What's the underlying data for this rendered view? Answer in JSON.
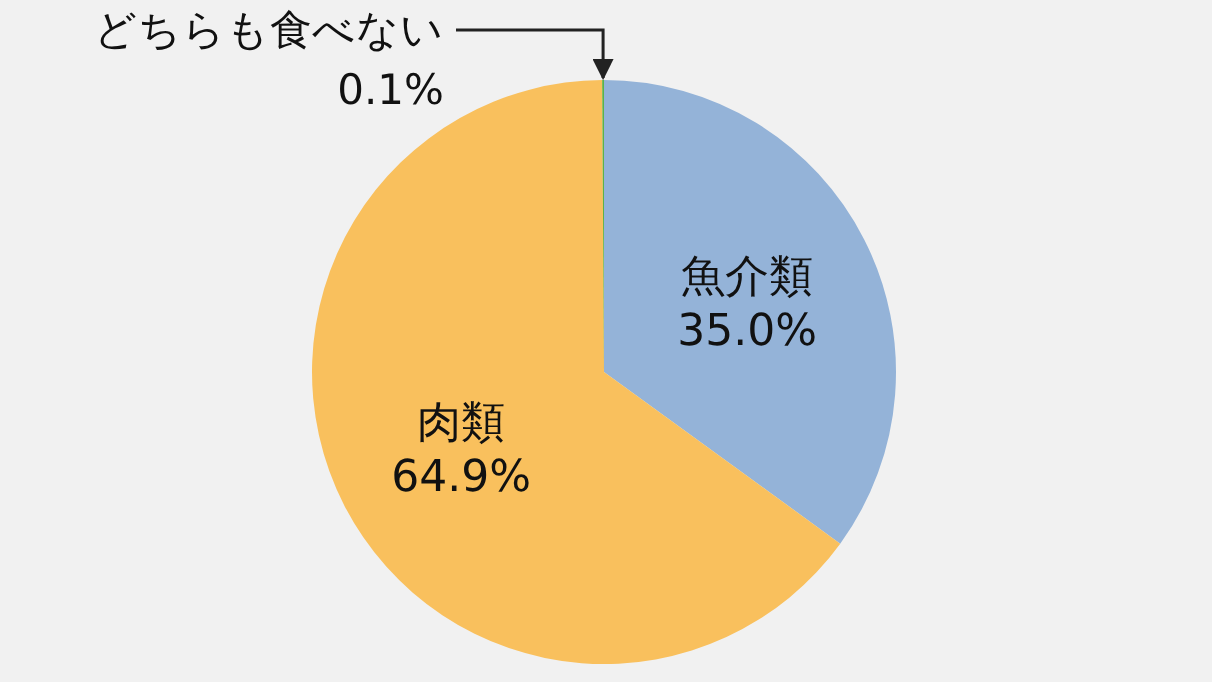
{
  "chart_data": {
    "type": "pie",
    "categories": [
      "魚介類",
      "肉類",
      "どちらも食べない"
    ],
    "values": [
      35.0,
      64.9,
      0.1
    ],
    "colors": [
      "#94b3d8",
      "#f9c05d",
      "#5db246"
    ],
    "value_labels": [
      "35.0%",
      "64.9%",
      "0.1%"
    ]
  }
}
